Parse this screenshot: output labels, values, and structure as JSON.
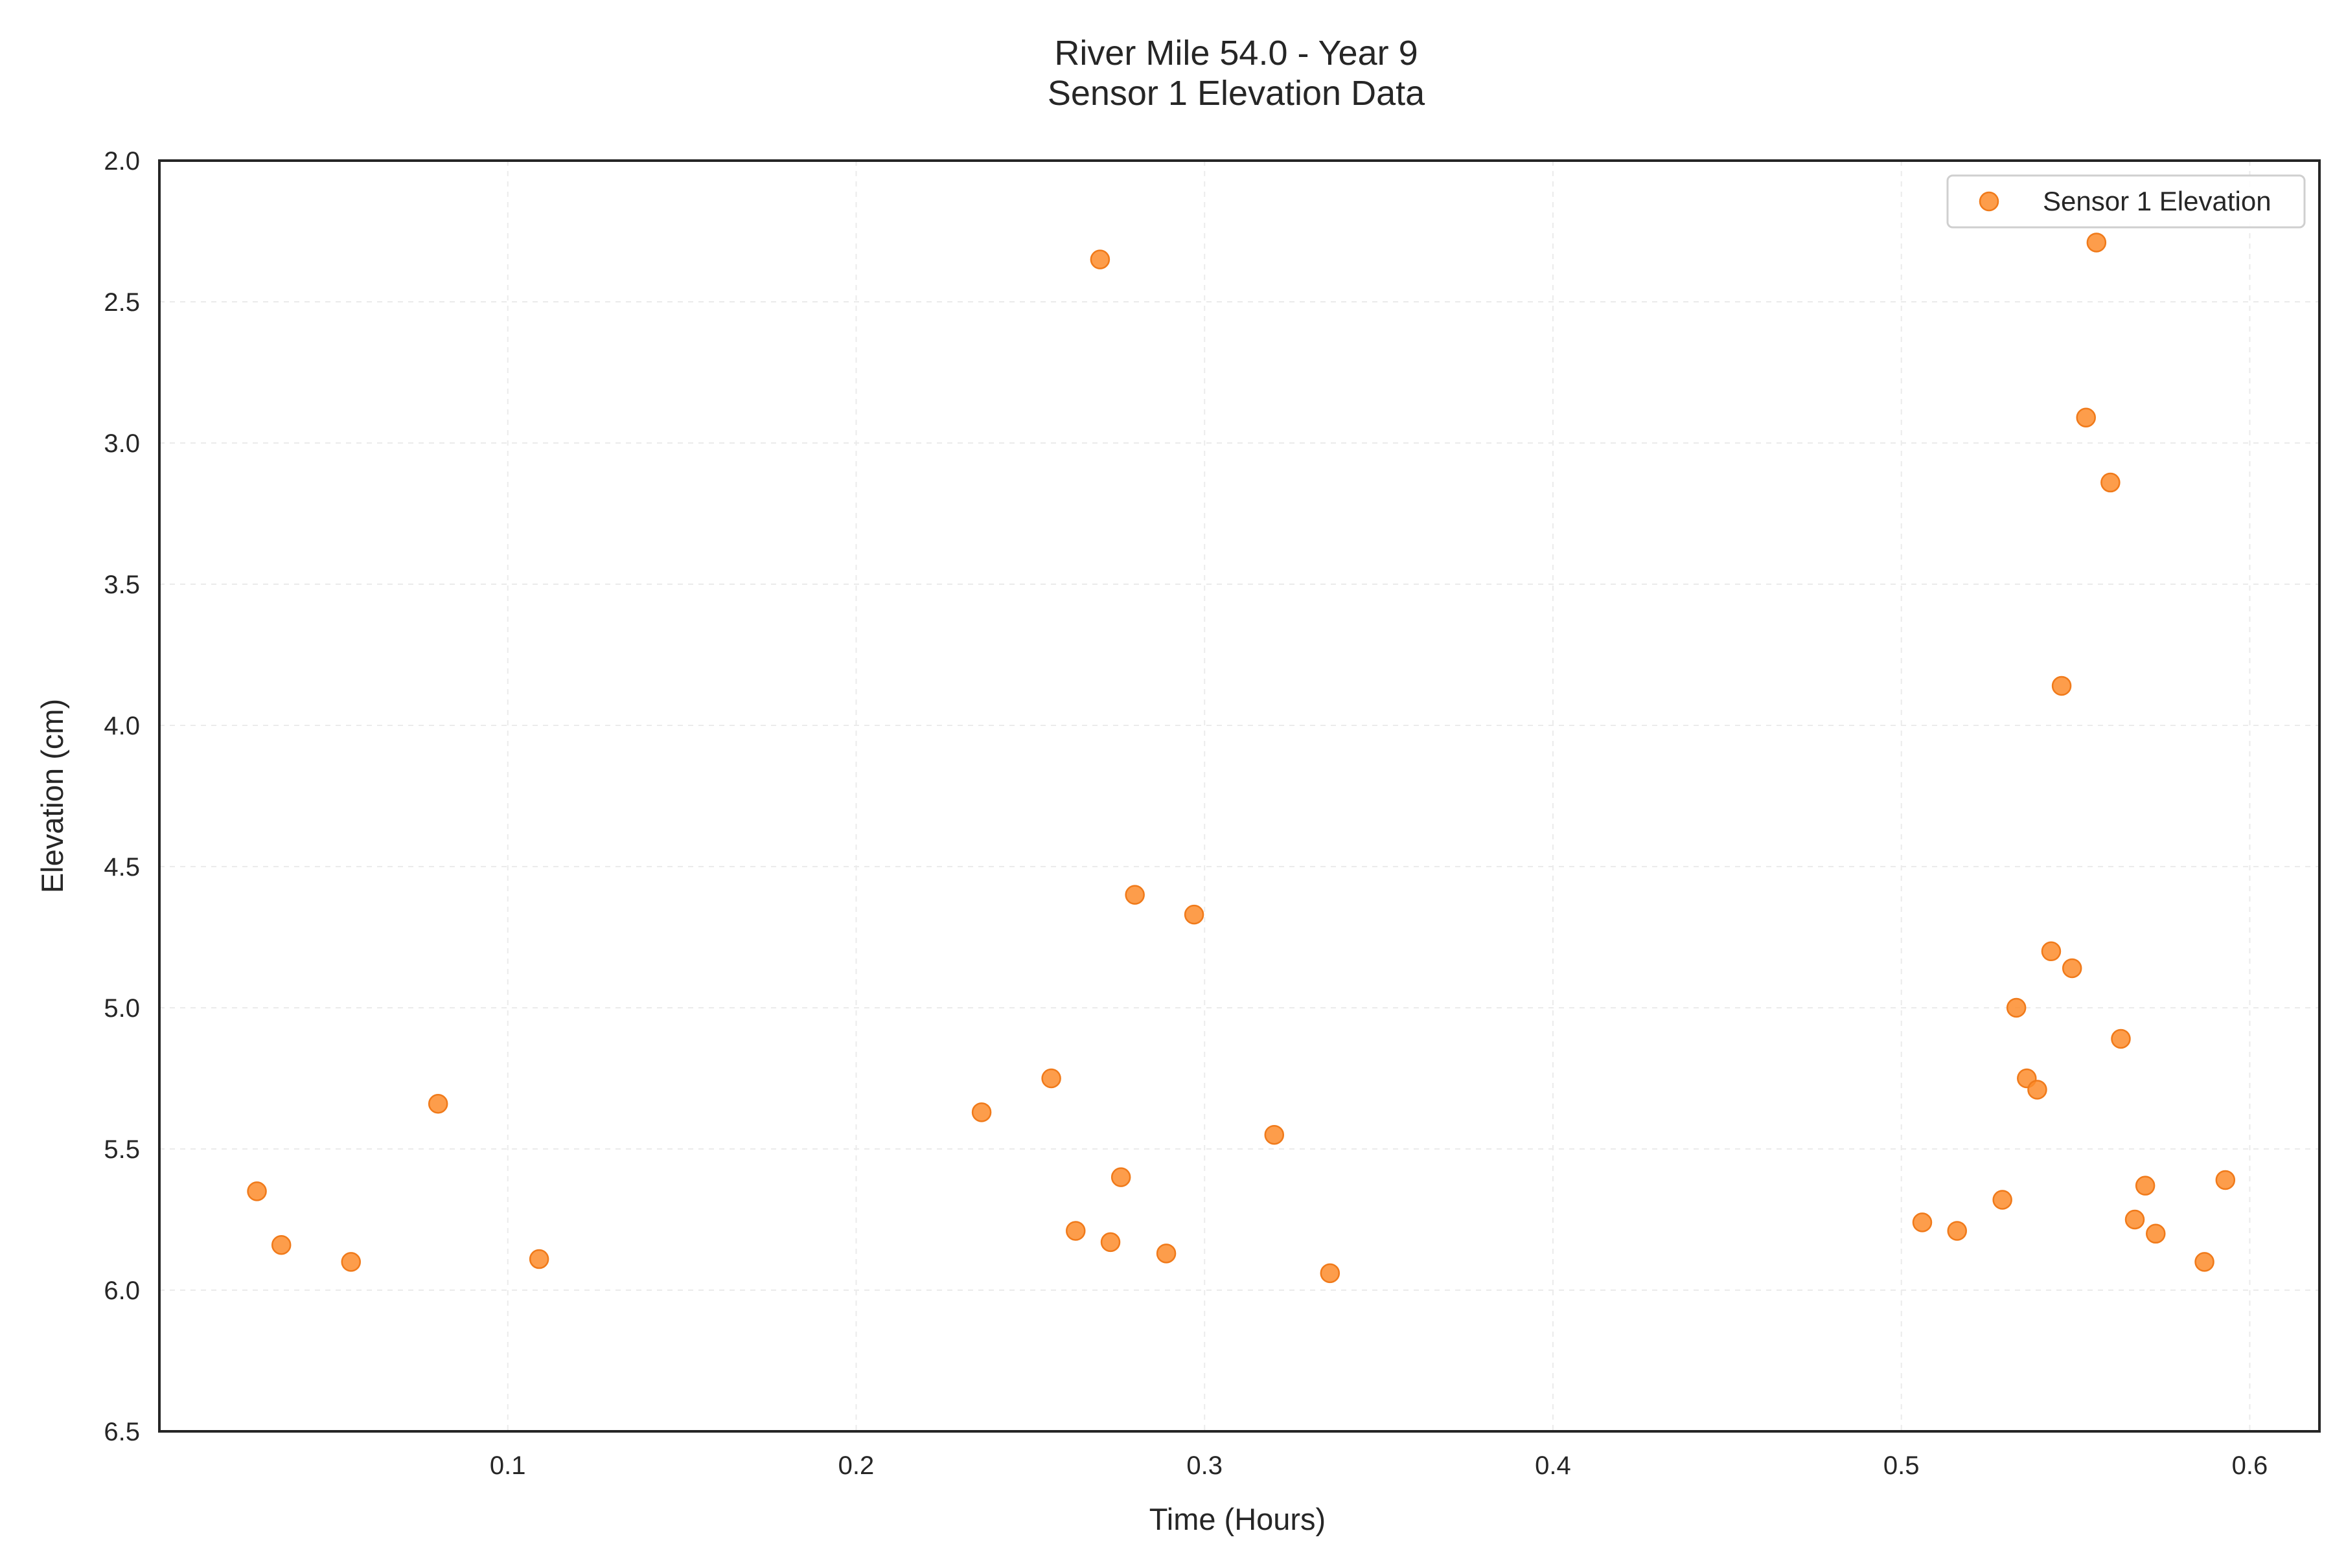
{
  "chart_data": {
    "type": "scatter",
    "title_lines": [
      "River Mile 54.0 - Year 9",
      "Sensor 1 Elevation Data"
    ],
    "xlabel": "Time (Hours)",
    "ylabel": "Elevation (cm)",
    "xlim": [
      0.0,
      0.62
    ],
    "ylim": [
      6.5,
      2.0
    ],
    "y_inverted": true,
    "grid": true,
    "legend_position": "top-right",
    "x_ticks": [
      0.1,
      0.2,
      0.3,
      0.4,
      0.5,
      0.6
    ],
    "x_tick_labels": [
      "0.1",
      "0.2",
      "0.3",
      "0.4",
      "0.5",
      "0.6"
    ],
    "y_ticks": [
      2.0,
      2.5,
      3.0,
      3.5,
      4.0,
      4.5,
      5.0,
      5.5,
      6.0,
      6.5
    ],
    "y_tick_labels": [
      "2.0",
      "2.5",
      "3.0",
      "3.5",
      "4.0",
      "4.5",
      "5.0",
      "5.5",
      "6.0",
      "6.5"
    ],
    "series": [
      {
        "name": "Sensor 1 Elevation",
        "color": "#fd8c2b",
        "points": [
          {
            "x": 0.028,
            "y": 5.65
          },
          {
            "x": 0.035,
            "y": 5.84
          },
          {
            "x": 0.055,
            "y": 5.9
          },
          {
            "x": 0.08,
            "y": 5.34
          },
          {
            "x": 0.109,
            "y": 5.89
          },
          {
            "x": 0.236,
            "y": 5.37
          },
          {
            "x": 0.256,
            "y": 5.25
          },
          {
            "x": 0.263,
            "y": 5.79
          },
          {
            "x": 0.27,
            "y": 2.35
          },
          {
            "x": 0.273,
            "y": 5.83
          },
          {
            "x": 0.276,
            "y": 5.6
          },
          {
            "x": 0.28,
            "y": 4.6
          },
          {
            "x": 0.289,
            "y": 5.87
          },
          {
            "x": 0.297,
            "y": 4.67
          },
          {
            "x": 0.32,
            "y": 5.45
          },
          {
            "x": 0.336,
            "y": 5.94
          },
          {
            "x": 0.506,
            "y": 5.76
          },
          {
            "x": 0.516,
            "y": 5.79
          },
          {
            "x": 0.529,
            "y": 5.68
          },
          {
            "x": 0.533,
            "y": 5.0
          },
          {
            "x": 0.536,
            "y": 5.25
          },
          {
            "x": 0.539,
            "y": 5.29
          },
          {
            "x": 0.543,
            "y": 4.8
          },
          {
            "x": 0.546,
            "y": 3.86
          },
          {
            "x": 0.549,
            "y": 4.86
          },
          {
            "x": 0.553,
            "y": 2.91
          },
          {
            "x": 0.556,
            "y": 2.29
          },
          {
            "x": 0.56,
            "y": 3.14
          },
          {
            "x": 0.563,
            "y": 5.11
          },
          {
            "x": 0.567,
            "y": 5.75
          },
          {
            "x": 0.57,
            "y": 5.63
          },
          {
            "x": 0.573,
            "y": 5.8
          },
          {
            "x": 0.587,
            "y": 5.9
          },
          {
            "x": 0.593,
            "y": 5.61
          }
        ]
      }
    ]
  }
}
